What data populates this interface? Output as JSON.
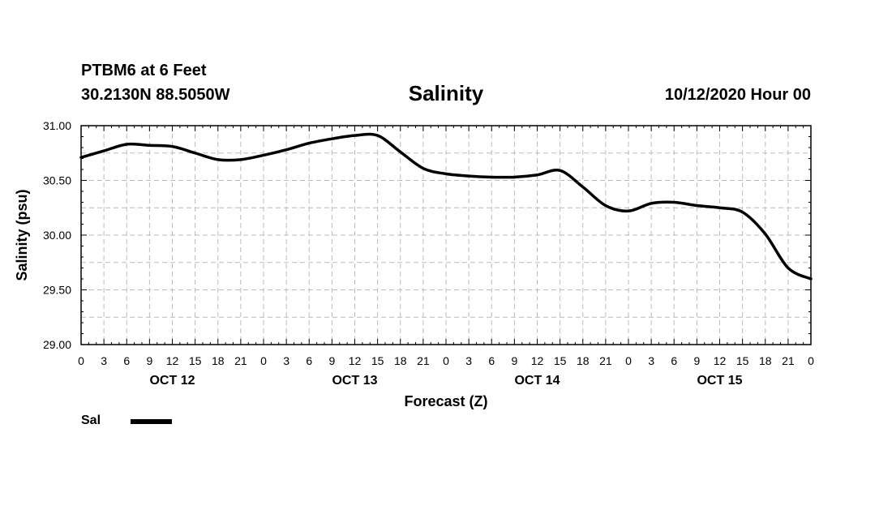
{
  "header": {
    "station": "PTBM6 at 6 Feet",
    "coords": "30.2130N 88.5050W",
    "run_time": "10/12/2020 Hour 00"
  },
  "chart_data": {
    "type": "line",
    "title": "Salinity",
    "xlabel": "Forecast (Z)",
    "ylabel": "Salinity (psu)",
    "ylim": [
      29.0,
      31.0
    ],
    "yticks": [
      "29.00",
      "29.50",
      "30.00",
      "30.50",
      "31.00"
    ],
    "xlim_hours": [
      0,
      96
    ],
    "xtick_labels": [
      "0",
      "3",
      "6",
      "9",
      "12",
      "15",
      "18",
      "21",
      "0",
      "3",
      "6",
      "9",
      "12",
      "15",
      "18",
      "21",
      "0",
      "3",
      "6",
      "9",
      "12",
      "15",
      "18",
      "21",
      "0",
      "3",
      "6",
      "9",
      "12",
      "15",
      "18",
      "21",
      "0"
    ],
    "day_labels": [
      {
        "label": "OCT 12",
        "hour": 12
      },
      {
        "label": "OCT 13",
        "hour": 36
      },
      {
        "label": "OCT 14",
        "hour": 60
      },
      {
        "label": "OCT 15",
        "hour": 84
      }
    ],
    "grid": true,
    "series": [
      {
        "name": "Sal",
        "x_hours": [
          0,
          3,
          6,
          9,
          12,
          15,
          18,
          21,
          24,
          27,
          30,
          33,
          36,
          39,
          42,
          45,
          48,
          51,
          54,
          57,
          60,
          63,
          66,
          69,
          72,
          75,
          78,
          81,
          84,
          87,
          90,
          93,
          96
        ],
        "values": [
          30.71,
          30.77,
          30.83,
          30.82,
          30.81,
          30.75,
          30.69,
          30.69,
          30.73,
          30.78,
          30.84,
          30.88,
          30.91,
          30.91,
          30.76,
          30.61,
          30.56,
          30.54,
          30.53,
          30.53,
          30.55,
          30.59,
          30.44,
          30.27,
          30.22,
          30.29,
          30.3,
          30.27,
          30.25,
          30.21,
          30.01,
          29.7,
          29.6
        ]
      }
    ]
  },
  "legend": {
    "label": "Sal"
  },
  "colors": {
    "line": "#000000",
    "grid": "#bbbbbb"
  }
}
